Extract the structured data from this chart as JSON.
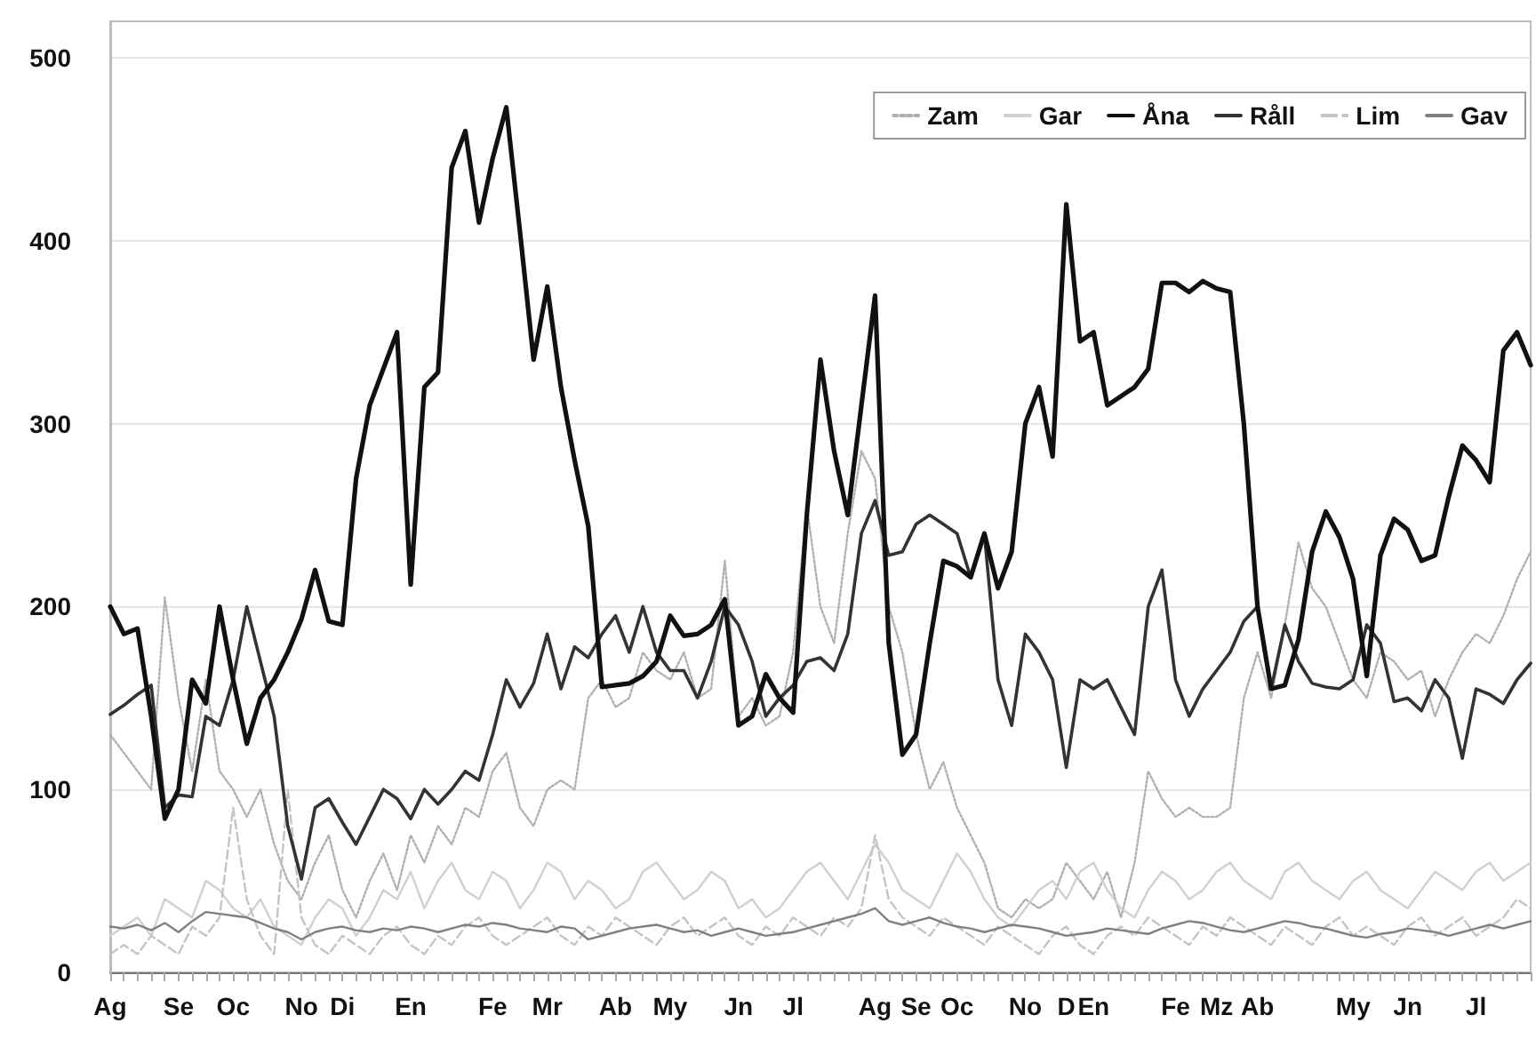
{
  "chart_data": {
    "type": "line",
    "categories": [
      "Ag",
      null,
      null,
      null,
      null,
      "Se",
      null,
      null,
      null,
      "Oc",
      null,
      null,
      null,
      null,
      "No",
      null,
      null,
      "Di",
      null,
      null,
      null,
      null,
      "En",
      null,
      null,
      null,
      null,
      null,
      "Fe",
      null,
      null,
      null,
      "Mr",
      null,
      null,
      null,
      null,
      "Ab",
      null,
      null,
      null,
      "My",
      null,
      null,
      null,
      null,
      "Jn",
      null,
      null,
      null,
      "Jl",
      null,
      null,
      null,
      null,
      null,
      "Ag",
      null,
      null,
      "Se",
      null,
      null,
      "Oc",
      null,
      null,
      null,
      null,
      "No",
      null,
      null,
      "D",
      null,
      "En",
      null,
      null,
      null,
      null,
      null,
      "Fe",
      null,
      null,
      "Mz",
      null,
      null,
      "Ab",
      null,
      null,
      null,
      null,
      null,
      null,
      "My",
      null,
      null,
      null,
      "Jn",
      null,
      null,
      null,
      null,
      "Jl",
      null,
      null,
      null,
      null
    ],
    "series": [
      {
        "name": "Zam",
        "color": "#b0b0b0",
        "line_style": "dotted",
        "values": [
          130,
          120,
          110,
          100,
          205,
          150,
          110,
          160,
          110,
          100,
          85,
          100,
          70,
          50,
          40,
          60,
          75,
          45,
          30,
          50,
          65,
          45,
          75,
          60,
          80,
          70,
          90,
          85,
          110,
          120,
          90,
          80,
          100,
          105,
          100,
          150,
          160,
          145,
          150,
          175,
          165,
          160,
          175,
          150,
          155,
          225,
          140,
          150,
          135,
          140,
          175,
          255,
          200,
          180,
          240,
          285,
          270,
          200,
          175,
          130,
          100,
          115,
          90,
          75,
          60,
          35,
          30,
          40,
          35,
          40,
          60,
          50,
          40,
          55,
          30,
          60,
          110,
          95,
          85,
          90,
          85,
          85,
          90,
          150,
          175,
          150,
          190,
          235,
          210,
          200,
          180,
          160,
          150,
          175,
          170,
          160,
          165,
          140,
          160,
          175,
          185,
          180,
          195,
          215,
          230
        ]
      },
      {
        "name": "Gar",
        "color": "#d0d0d0",
        "line_style": "solid",
        "values": [
          20,
          25,
          30,
          20,
          40,
          35,
          30,
          50,
          45,
          35,
          30,
          40,
          25,
          20,
          15,
          30,
          40,
          35,
          20,
          30,
          45,
          40,
          55,
          35,
          50,
          60,
          45,
          40,
          55,
          50,
          35,
          45,
          60,
          55,
          40,
          50,
          45,
          35,
          40,
          55,
          60,
          50,
          40,
          45,
          55,
          50,
          35,
          40,
          30,
          35,
          45,
          55,
          60,
          50,
          40,
          55,
          70,
          60,
          45,
          40,
          35,
          50,
          65,
          55,
          40,
          30,
          25,
          35,
          45,
          50,
          40,
          55,
          60,
          45,
          35,
          30,
          45,
          55,
          50,
          40,
          45,
          55,
          60,
          50,
          45,
          40,
          55,
          60,
          50,
          45,
          40,
          50,
          55,
          45,
          40,
          35,
          45,
          55,
          50,
          45,
          55,
          60,
          50,
          55,
          60
        ]
      },
      {
        "name": "Åna",
        "color": "#111111",
        "line_style": "solid",
        "values": [
          200,
          185,
          188,
          140,
          84,
          100,
          160,
          147,
          200,
          160,
          125,
          150,
          160,
          175,
          193,
          220,
          192,
          190,
          270,
          310,
          330,
          350,
          212,
          320,
          328,
          440,
          460,
          410,
          445,
          473,
          405,
          335,
          375,
          320,
          280,
          244,
          156,
          157,
          158,
          162,
          170,
          195,
          184,
          185,
          190,
          204,
          135,
          140,
          163,
          150,
          142,
          250,
          335,
          285,
          250,
          310,
          370,
          180,
          119,
          130,
          180,
          225,
          222,
          216,
          240,
          210,
          230,
          300,
          320,
          282,
          420,
          345,
          350,
          310,
          315,
          320,
          330,
          377,
          377,
          372,
          378,
          374,
          372,
          300,
          200,
          155,
          157,
          182,
          230,
          252,
          238,
          215,
          162,
          228,
          248,
          242,
          225,
          228,
          260,
          288,
          280,
          268,
          340,
          350,
          332
        ]
      },
      {
        "name": "Råll",
        "color": "#333333",
        "line_style": "solid",
        "values": [
          141,
          146,
          152,
          157,
          90,
          97,
          96,
          140,
          135,
          160,
          200,
          170,
          140,
          80,
          51,
          90,
          95,
          82,
          70,
          85,
          100,
          95,
          84,
          100,
          92,
          100,
          110,
          105,
          130,
          160,
          145,
          158,
          185,
          155,
          178,
          172,
          185,
          195,
          175,
          200,
          175,
          165,
          165,
          150,
          170,
          200,
          190,
          170,
          140,
          150,
          157,
          170,
          172,
          165,
          185,
          240,
          258,
          228,
          230,
          245,
          250,
          245,
          240,
          216,
          240,
          160,
          135,
          185,
          175,
          160,
          112,
          160,
          155,
          160,
          145,
          130,
          200,
          220,
          160,
          140,
          155,
          165,
          175,
          192,
          200,
          155,
          190,
          170,
          158,
          156,
          155,
          160,
          190,
          180,
          148,
          150,
          143,
          160,
          150,
          117,
          155,
          152,
          147,
          160,
          169
        ]
      },
      {
        "name": "Lim",
        "color": "#c4c4c4",
        "line_style": "dashed",
        "values": [
          10,
          15,
          10,
          20,
          15,
          10,
          25,
          20,
          30,
          90,
          40,
          20,
          10,
          100,
          30,
          15,
          10,
          20,
          15,
          10,
          20,
          25,
          15,
          10,
          20,
          15,
          25,
          30,
          20,
          15,
          20,
          25,
          30,
          20,
          15,
          25,
          20,
          30,
          25,
          20,
          15,
          25,
          30,
          20,
          25,
          30,
          20,
          15,
          25,
          20,
          30,
          25,
          20,
          30,
          25,
          35,
          75,
          40,
          30,
          25,
          20,
          30,
          25,
          20,
          15,
          25,
          20,
          15,
          10,
          20,
          25,
          15,
          10,
          20,
          25,
          20,
          30,
          25,
          20,
          15,
          25,
          20,
          30,
          25,
          20,
          15,
          25,
          20,
          15,
          25,
          30,
          20,
          25,
          20,
          15,
          25,
          30,
          20,
          25,
          30,
          20,
          25,
          30,
          40,
          35
        ]
      },
      {
        "name": "Gav",
        "color": "#808080",
        "line_style": "solid",
        "values": [
          25,
          24,
          26,
          23,
          27,
          22,
          28,
          33,
          32,
          31,
          30,
          27,
          24,
          22,
          18,
          22,
          24,
          25,
          23,
          22,
          24,
          23,
          25,
          24,
          22,
          24,
          26,
          25,
          27,
          26,
          24,
          23,
          22,
          25,
          24,
          18,
          20,
          22,
          24,
          25,
          26,
          24,
          22,
          23,
          20,
          22,
          24,
          22,
          20,
          21,
          22,
          24,
          26,
          28,
          30,
          32,
          35,
          28,
          26,
          28,
          30,
          27,
          25,
          24,
          22,
          24,
          26,
          25,
          24,
          22,
          20,
          21,
          22,
          24,
          23,
          22,
          21,
          24,
          26,
          28,
          27,
          25,
          23,
          22,
          24,
          26,
          28,
          27,
          25,
          24,
          22,
          20,
          19,
          21,
          22,
          24,
          23,
          22,
          20,
          22,
          24,
          26,
          24,
          26,
          28
        ]
      }
    ],
    "ylim": [
      0,
      520
    ],
    "yticks": [
      0,
      100,
      200,
      300,
      400,
      500
    ],
    "grid": "y",
    "legend": "top right"
  }
}
